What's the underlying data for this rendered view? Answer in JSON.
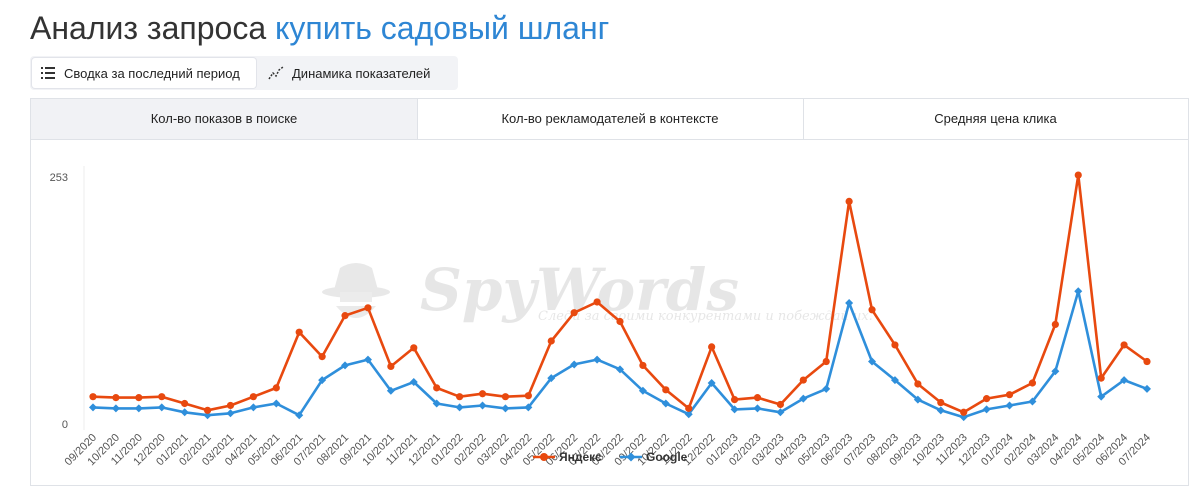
{
  "header": {
    "title_prefix": "Анализ запроса",
    "query": "купить садовый шланг"
  },
  "view_switch": {
    "summary_label": "Сводка за последний период",
    "dynamics_label": "Динамика показателей"
  },
  "tabs": [
    {
      "label": "Кол-во показов в поиске",
      "active": true
    },
    {
      "label": "Кол-во рекламодателей в контексте",
      "active": false
    },
    {
      "label": "Средняя цена клика",
      "active": false
    }
  ],
  "watermark": {
    "brand": "SpyWords",
    "tagline": "Следи за своими конкурентами и побеждай их."
  },
  "colors": {
    "accent": "#2e86d4",
    "yandex": "#e8490f",
    "google": "#2f8fdb"
  },
  "chart_data": {
    "type": "line",
    "title": "",
    "xlabel": "",
    "ylabel": "",
    "ylim": [
      0,
      253
    ],
    "yticks": [
      0,
      253
    ],
    "legend_position": "bottom",
    "x": [
      "09/2020",
      "10/2020",
      "11/2020",
      "12/2020",
      "01/2021",
      "02/2021",
      "03/2021",
      "04/2021",
      "05/2021",
      "06/2021",
      "07/2021",
      "08/2021",
      "09/2021",
      "10/2021",
      "11/2021",
      "12/2021",
      "01/2022",
      "02/2022",
      "03/2022",
      "04/2022",
      "05/2022",
      "06/2022",
      "07/2022",
      "08/2022",
      "09/2022",
      "10/2022",
      "11/2022",
      "12/2022",
      "01/2023",
      "02/2023",
      "03/2023",
      "04/2023",
      "05/2023",
      "06/2023",
      "07/2023",
      "08/2023",
      "09/2023",
      "10/2023",
      "11/2023",
      "12/2023",
      "01/2024",
      "02/2024",
      "03/2024",
      "04/2024",
      "05/2024",
      "06/2024",
      "07/2024"
    ],
    "series": [
      {
        "name": "Яндекс",
        "color": "#e8490f",
        "values": [
          28,
          27,
          27,
          28,
          21,
          14,
          19,
          28,
          37,
          94,
          69,
          111,
          119,
          59,
          78,
          37,
          28,
          31,
          28,
          29,
          85,
          114,
          125,
          105,
          60,
          35,
          16,
          79,
          25,
          27,
          20,
          45,
          64,
          228,
          117,
          81,
          41,
          22,
          12,
          26,
          30,
          42,
          102,
          255,
          47,
          81,
          64
        ]
      },
      {
        "name": "Google",
        "color": "#2f8fdb",
        "values": [
          17,
          16,
          16,
          17,
          12,
          9,
          11,
          17,
          21,
          9,
          45,
          60,
          66,
          34,
          43,
          21,
          17,
          19,
          16,
          17,
          47,
          61,
          66,
          56,
          34,
          21,
          10,
          42,
          15,
          16,
          12,
          26,
          36,
          124,
          64,
          45,
          25,
          14,
          7,
          15,
          19,
          23,
          54,
          136,
          28,
          45,
          36
        ]
      }
    ]
  }
}
